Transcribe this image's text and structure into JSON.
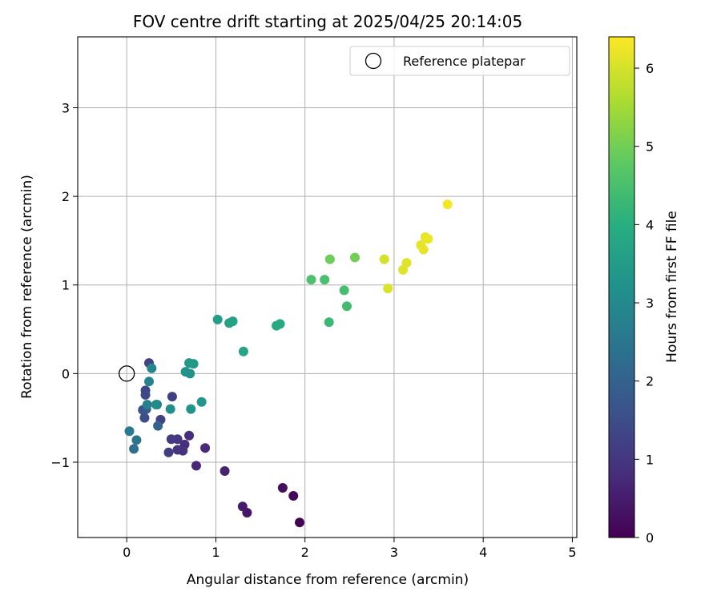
{
  "chart_data": {
    "type": "scatter",
    "title": "FOV centre drift starting at 2025/04/25 20:14:05",
    "xlabel": "Angular distance from reference (arcmin)",
    "ylabel": "Rotation from reference (arcmin)",
    "xlim": [
      -0.55,
      5.05
    ],
    "ylim": [
      -1.85,
      3.8
    ],
    "xticks": [
      0,
      1,
      2,
      3,
      4,
      5
    ],
    "yticks": [
      -1,
      0,
      1,
      2,
      3
    ],
    "grid": true,
    "legend_position": "top-right",
    "reference": {
      "name": "Reference platepar",
      "x": 0,
      "y": 0
    },
    "colorbar": {
      "label": "Hours from first FF file",
      "range": [
        0,
        6.4
      ],
      "ticks": [
        0,
        1,
        2,
        3,
        4,
        5,
        6
      ],
      "colormap": "viridis"
    },
    "points": [
      {
        "x": 1.94,
        "y": -1.68,
        "c": 0.05
      },
      {
        "x": 1.87,
        "y": -1.38,
        "c": 0.15
      },
      {
        "x": 1.75,
        "y": -1.29,
        "c": 0.25
      },
      {
        "x": 1.35,
        "y": -1.57,
        "c": 0.4
      },
      {
        "x": 1.3,
        "y": -1.5,
        "c": 0.5
      },
      {
        "x": 1.1,
        "y": -1.1,
        "c": 0.6
      },
      {
        "x": 0.78,
        "y": -1.04,
        "c": 0.7
      },
      {
        "x": 0.88,
        "y": -0.84,
        "c": 0.75
      },
      {
        "x": 0.7,
        "y": -0.7,
        "c": 0.8
      },
      {
        "x": 0.65,
        "y": -0.8,
        "c": 0.85
      },
      {
        "x": 0.63,
        "y": -0.87,
        "c": 0.9
      },
      {
        "x": 0.57,
        "y": -0.86,
        "c": 0.95
      },
      {
        "x": 0.57,
        "y": -0.74,
        "c": 1.0
      },
      {
        "x": 0.5,
        "y": -0.74,
        "c": 1.1
      },
      {
        "x": 0.47,
        "y": -0.89,
        "c": 1.15
      },
      {
        "x": 0.51,
        "y": -0.26,
        "c": 1.2
      },
      {
        "x": 0.38,
        "y": -0.52,
        "c": 1.25
      },
      {
        "x": 0.25,
        "y": 0.12,
        "c": 1.3
      },
      {
        "x": 0.21,
        "y": -0.19,
        "c": 1.35
      },
      {
        "x": 0.21,
        "y": -0.24,
        "c": 1.4
      },
      {
        "x": 0.2,
        "y": -0.5,
        "c": 1.5
      },
      {
        "x": 0.18,
        "y": -0.41,
        "c": 1.6
      },
      {
        "x": 0.22,
        "y": -0.4,
        "c": 1.75
      },
      {
        "x": 0.35,
        "y": -0.59,
        "c": 2.0
      },
      {
        "x": 0.34,
        "y": -0.35,
        "c": 2.1
      },
      {
        "x": 0.08,
        "y": -0.85,
        "c": 2.3
      },
      {
        "x": 0.11,
        "y": -0.75,
        "c": 2.45
      },
      {
        "x": 0.03,
        "y": -0.65,
        "c": 2.6
      },
      {
        "x": 0.23,
        "y": -0.35,
        "c": 2.75
      },
      {
        "x": 0.25,
        "y": -0.09,
        "c": 2.85
      },
      {
        "x": 0.28,
        "y": 0.06,
        "c": 2.95
      },
      {
        "x": 0.33,
        "y": -0.35,
        "c": 3.05
      },
      {
        "x": 0.49,
        "y": -0.4,
        "c": 3.15
      },
      {
        "x": 0.71,
        "y": 0.0,
        "c": 3.2
      },
      {
        "x": 0.66,
        "y": 0.02,
        "c": 3.25
      },
      {
        "x": 0.72,
        "y": -0.4,
        "c": 3.3
      },
      {
        "x": 0.84,
        "y": -0.32,
        "c": 3.35
      },
      {
        "x": 0.7,
        "y": 0.12,
        "c": 3.4
      },
      {
        "x": 0.75,
        "y": 0.11,
        "c": 3.45
      },
      {
        "x": 1.02,
        "y": 0.61,
        "c": 3.55
      },
      {
        "x": 1.15,
        "y": 0.57,
        "c": 3.6
      },
      {
        "x": 1.19,
        "y": 0.59,
        "c": 3.65
      },
      {
        "x": 1.31,
        "y": 0.25,
        "c": 3.75
      },
      {
        "x": 1.68,
        "y": 0.54,
        "c": 3.85
      },
      {
        "x": 1.72,
        "y": 0.56,
        "c": 3.9
      },
      {
        "x": 2.27,
        "y": 0.58,
        "c": 4.3
      },
      {
        "x": 2.47,
        "y": 0.76,
        "c": 4.4
      },
      {
        "x": 2.44,
        "y": 0.94,
        "c": 4.45
      },
      {
        "x": 2.22,
        "y": 1.06,
        "c": 4.5
      },
      {
        "x": 2.07,
        "y": 1.06,
        "c": 4.55
      },
      {
        "x": 2.28,
        "y": 1.29,
        "c": 4.95
      },
      {
        "x": 2.56,
        "y": 1.31,
        "c": 5.0
      },
      {
        "x": 2.89,
        "y": 1.29,
        "c": 6.0
      },
      {
        "x": 2.93,
        "y": 0.96,
        "c": 6.05
      },
      {
        "x": 3.1,
        "y": 1.17,
        "c": 6.1
      },
      {
        "x": 3.14,
        "y": 1.25,
        "c": 6.12
      },
      {
        "x": 3.3,
        "y": 1.45,
        "c": 6.15
      },
      {
        "x": 3.33,
        "y": 1.4,
        "c": 6.18
      },
      {
        "x": 3.35,
        "y": 1.54,
        "c": 6.2
      },
      {
        "x": 3.38,
        "y": 1.52,
        "c": 6.22
      },
      {
        "x": 3.6,
        "y": 1.91,
        "c": 6.3
      }
    ]
  }
}
